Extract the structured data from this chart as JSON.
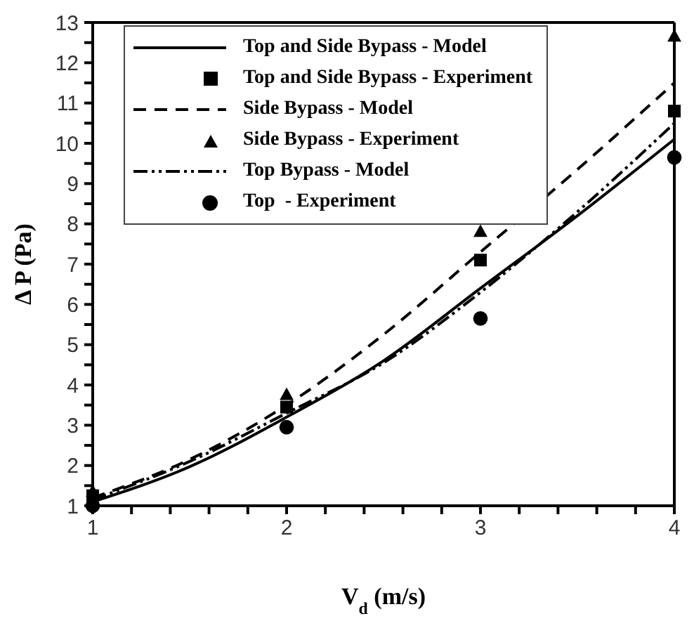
{
  "chart_data": {
    "type": "line",
    "xlabel": "V$_{d}$ (m/s)",
    "ylabel": "Δ P (Pa)",
    "xlim": [
      1,
      4
    ],
    "ylim": [
      1,
      13
    ],
    "xticks": [
      1,
      {
        "value": 1.2,
        "label": null
      },
      {
        "value": 1.4,
        "label": null
      },
      {
        "value": 1.6,
        "label": null
      },
      {
        "value": 1.8,
        "label": null
      },
      2,
      {
        "value": 2.2,
        "label": null
      },
      {
        "value": 2.4,
        "label": null
      },
      {
        "value": 2.6,
        "label": null
      },
      {
        "value": 2.8,
        "label": null
      },
      3,
      {
        "value": 3.2,
        "label": null
      },
      {
        "value": 3.4,
        "label": null
      },
      {
        "value": 3.6,
        "label": null
      },
      {
        "value": 3.8,
        "label": null
      },
      4
    ],
    "yticks": [
      1,
      {
        "value": 1.5,
        "label": null
      },
      2,
      {
        "value": 2.5,
        "label": null
      },
      3,
      {
        "value": 3.5,
        "label": null
      },
      4,
      {
        "value": 4.5,
        "label": null
      },
      5,
      {
        "value": 5.5,
        "label": null
      },
      6,
      {
        "value": 6.5,
        "label": null
      },
      7,
      {
        "value": 7.5,
        "label": null
      },
      8,
      {
        "value": 8.5,
        "label": null
      },
      9,
      {
        "value": 9.5,
        "label": null
      },
      10,
      {
        "value": 10.5,
        "label": null
      },
      11,
      {
        "value": 11.5,
        "label": null
      },
      12,
      {
        "value": 12.5,
        "label": null
      },
      13
    ],
    "legend": "top left",
    "series": [
      {
        "name": "Top and Side Bypass - Model",
        "color": "#000000",
        "line_style": "solid",
        "marker": "none",
        "x": [
          1,
          1.5,
          2,
          2.5,
          3,
          3.5,
          4
        ],
        "values": [
          1.1,
          1.97,
          3.2,
          4.6,
          6.4,
          8.2,
          10.1
        ]
      },
      {
        "name": "Top and Side Bypass - Experiment",
        "type": "scatter",
        "color": "#000000",
        "marker": "square",
        "x": [
          1,
          2,
          3,
          4
        ],
        "values": [
          1.25,
          3.45,
          7.1,
          10.8
        ]
      },
      {
        "name": "Side Bypass - Model",
        "color": "#000000",
        "line_style": "dashed",
        "marker": "none",
        "x": [
          1,
          1.5,
          2,
          2.5,
          3,
          3.5,
          4
        ],
        "values": [
          1.2,
          2.15,
          3.5,
          5.25,
          7.3,
          9.35,
          11.5
        ]
      },
      {
        "name": "Side Bypass - Experiment",
        "type": "scatter",
        "color": "#000000",
        "marker": "triangle",
        "x": [
          1,
          2,
          3,
          4
        ],
        "values": [
          1.35,
          3.75,
          7.8,
          12.65
        ]
      },
      {
        "name": "Top Bypass - Model",
        "color": "#000000",
        "line_style": "dotted",
        "marker": "none",
        "x": [
          1,
          1.5,
          2,
          2.5,
          3,
          3.5,
          4
        ],
        "values": [
          1.15,
          2.1,
          3.3,
          4.55,
          6.3,
          8.3,
          10.5
        ]
      },
      {
        "name": "Top  - Experiment",
        "type": "scatter",
        "color": "#000000",
        "marker": "circle",
        "x": [
          1,
          2,
          3,
          4
        ],
        "values": [
          1.0,
          2.95,
          5.65,
          9.65
        ]
      }
    ]
  }
}
